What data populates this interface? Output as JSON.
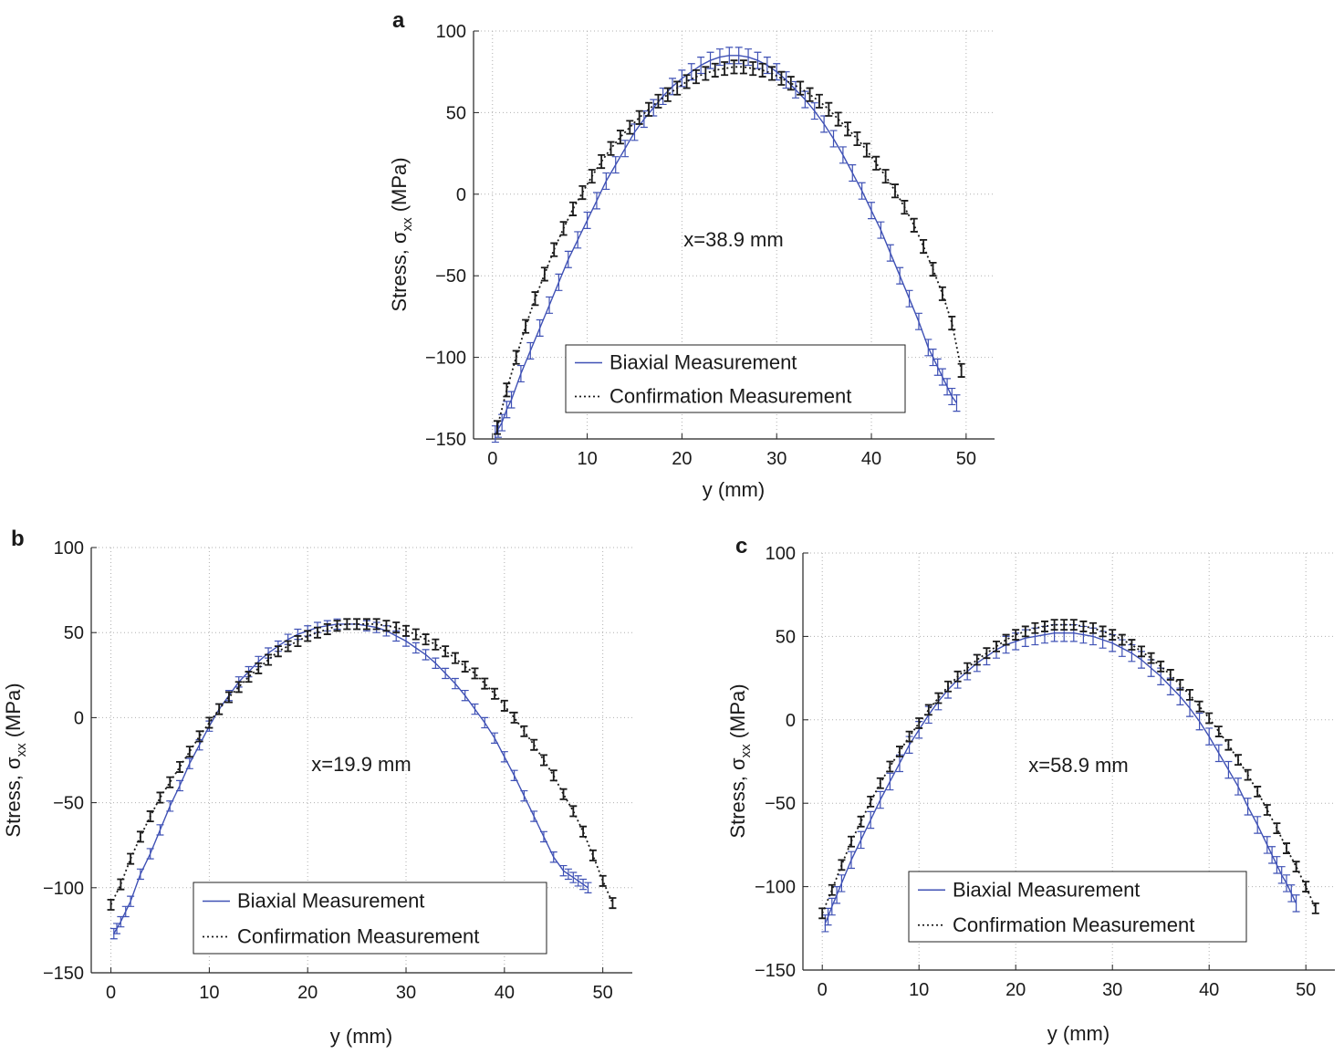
{
  "figure_labels": {
    "a": "a",
    "b": "b",
    "c": "c"
  },
  "colors": {
    "biaxial": "#3f51b5",
    "confirmation": "#1a1a1a",
    "grid": "#b0b0b0",
    "axis": "#222222"
  },
  "chart_data": [
    {
      "panel": "a",
      "type": "line",
      "annotation": "x=38.9 mm",
      "xlabel": "y (mm)",
      "ylabel_main": "Stress, σ",
      "ylabel_sub": "xx",
      "ylabel_unit": " (MPa)",
      "xlim": [
        -2,
        53
      ],
      "ylim": [
        -150,
        100
      ],
      "xticks": [
        0,
        10,
        20,
        30,
        40,
        50
      ],
      "yticks": [
        -150,
        -100,
        -50,
        0,
        50,
        100
      ],
      "xtick_labels": [
        "0",
        "10",
        "20",
        "30",
        "40",
        "50"
      ],
      "ytick_labels": [
        "−150",
        "−100",
        "−50",
        "0",
        "50",
        "100"
      ],
      "grid": true,
      "legend": {
        "placement": "lower-center",
        "entries": [
          "Biaxial Measurement",
          "Confirmation Measurement"
        ]
      },
      "series": [
        {
          "name": "Biaxial Measurement",
          "style": "solid",
          "x": [
            0.3,
            0.6,
            1,
            1.5,
            2,
            3,
            4,
            5,
            6,
            7,
            8,
            9,
            10,
            11,
            12,
            13,
            14,
            15,
            16,
            17,
            18,
            19,
            20,
            21,
            22,
            23,
            24,
            25,
            26,
            27,
            28,
            29,
            30,
            31,
            32,
            33,
            34,
            35,
            36,
            37,
            38,
            39,
            40,
            41,
            42,
            43,
            44,
            45,
            46,
            46.5,
            47,
            47.5,
            48,
            48.5,
            49
          ],
          "y": [
            -147,
            -144,
            -140,
            -132,
            -126,
            -110,
            -96,
            -82,
            -68,
            -54,
            -40,
            -28,
            -16,
            -4,
            8,
            18,
            28,
            38,
            46,
            53,
            60,
            66,
            71,
            75,
            79,
            82,
            84,
            85,
            85,
            84,
            82,
            79,
            75,
            70,
            64,
            58,
            51,
            43,
            34,
            24,
            13,
            2,
            -10,
            -22,
            -36,
            -50,
            -64,
            -78,
            -94,
            -100,
            -106,
            -112,
            -118,
            -124,
            -128
          ],
          "err": [
            5,
            5,
            5,
            5,
            5,
            5,
            5,
            5,
            5,
            5,
            5,
            5,
            5,
            5,
            5,
            5,
            5,
            5,
            5,
            5,
            5,
            5,
            5,
            5,
            5,
            5,
            5,
            5,
            5,
            5,
            5,
            5,
            5,
            5,
            5,
            5,
            5,
            5,
            5,
            5,
            5,
            5,
            5,
            5,
            5,
            5,
            5,
            5,
            5,
            5,
            5,
            5,
            5,
            5,
            5
          ]
        },
        {
          "name": "Confirmation Measurement",
          "style": "dotted",
          "x": [
            0.5,
            1.5,
            2.5,
            3.5,
            4.5,
            5.5,
            6.5,
            7.5,
            8.5,
            9.5,
            10.5,
            11.5,
            12.5,
            13.5,
            14.5,
            15.5,
            16.5,
            17.5,
            18.5,
            19.5,
            20.5,
            21.5,
            22.5,
            23.5,
            24.5,
            25.5,
            26.5,
            27.5,
            28.5,
            29.5,
            30.5,
            31.5,
            32.5,
            33.5,
            34.5,
            35.5,
            36.5,
            37.5,
            38.5,
            39.5,
            40.5,
            41.5,
            42.5,
            43.5,
            44.5,
            45.5,
            46.5,
            47.5,
            48.5,
            49.5
          ],
          "y": [
            -143,
            -120,
            -100,
            -81,
            -64,
            -49,
            -34,
            -21,
            -9,
            1,
            11,
            20,
            28,
            35,
            41,
            47,
            52,
            57,
            61,
            65,
            69,
            72,
            74,
            76,
            77,
            78,
            78,
            77,
            76,
            74,
            71,
            68,
            65,
            61,
            57,
            52,
            46,
            40,
            34,
            27,
            19,
            11,
            2,
            -8,
            -19,
            -32,
            -46,
            -61,
            -79,
            -108
          ],
          "err": [
            4,
            4,
            4,
            4,
            4,
            4,
            4,
            4,
            4,
            4,
            4,
            4,
            4,
            4,
            4,
            4,
            4,
            4,
            4,
            4,
            4,
            4,
            4,
            4,
            4,
            4,
            4,
            4,
            4,
            4,
            4,
            4,
            4,
            4,
            4,
            4,
            4,
            4,
            4,
            4,
            4,
            4,
            4,
            4,
            4,
            4,
            4,
            4,
            4,
            4
          ]
        }
      ]
    },
    {
      "panel": "b",
      "type": "line",
      "annotation": "x=19.9 mm",
      "xlabel": "y (mm)",
      "ylabel_main": "Stress, σ",
      "ylabel_sub": "xx",
      "ylabel_unit": " (MPa)",
      "xlim": [
        -2,
        53
      ],
      "ylim": [
        -150,
        100
      ],
      "xticks": [
        0,
        10,
        20,
        30,
        40,
        50
      ],
      "yticks": [
        -150,
        -100,
        -50,
        0,
        50,
        100
      ],
      "xtick_labels": [
        "0",
        "10",
        "20",
        "30",
        "40",
        "50"
      ],
      "ytick_labels": [
        "−150",
        "−100",
        "−50",
        "0",
        "50",
        "100"
      ],
      "grid": true,
      "legend": {
        "placement": "lower-center",
        "entries": [
          "Biaxial Measurement",
          "Confirmation Measurement"
        ]
      },
      "series": [
        {
          "name": "Biaxial Measurement",
          "style": "solid",
          "x": [
            0.3,
            0.6,
            1,
            1.5,
            2,
            3,
            4,
            5,
            6,
            7,
            8,
            9,
            10,
            11,
            12,
            13,
            14,
            15,
            16,
            17,
            18,
            19,
            20,
            21,
            22,
            23,
            24,
            25,
            26,
            27,
            28,
            29,
            30,
            31,
            32,
            33,
            34,
            35,
            36,
            37,
            38,
            39,
            40,
            41,
            42,
            43,
            44,
            45,
            46,
            46.5,
            47,
            47.5,
            48,
            48.5
          ],
          "y": [
            -127,
            -124,
            -120,
            -114,
            -108,
            -92,
            -80,
            -66,
            -52,
            -40,
            -27,
            -16,
            -5,
            5,
            13,
            21,
            27,
            33,
            38,
            42,
            46,
            49,
            51,
            53,
            54,
            55,
            55,
            55,
            54,
            53,
            51,
            48,
            45,
            41,
            37,
            32,
            26,
            20,
            13,
            5,
            -3,
            -12,
            -23,
            -34,
            -46,
            -58,
            -70,
            -82,
            -90,
            -92,
            -94,
            -96,
            -98,
            -100
          ],
          "err": [
            3,
            3,
            3,
            3,
            3,
            3,
            3,
            3,
            3,
            3,
            3,
            3,
            3,
            3,
            3,
            3,
            3,
            3,
            3,
            3,
            3,
            3,
            3,
            3,
            3,
            3,
            3,
            3,
            3,
            3,
            3,
            3,
            3,
            3,
            3,
            3,
            3,
            3,
            3,
            3,
            3,
            3,
            3,
            3,
            3,
            3,
            3,
            3,
            3,
            3,
            3,
            3,
            3,
            3
          ]
        },
        {
          "name": "Confirmation Measurement",
          "style": "dotted",
          "x": [
            0,
            1,
            2,
            3,
            4,
            5,
            6,
            7,
            8,
            9,
            10,
            11,
            12,
            13,
            14,
            15,
            16,
            17,
            18,
            19,
            20,
            21,
            22,
            23,
            24,
            25,
            26,
            27,
            28,
            29,
            30,
            31,
            32,
            33,
            34,
            35,
            36,
            37,
            38,
            39,
            40,
            41,
            42,
            43,
            44,
            45,
            46,
            47,
            48,
            49,
            50,
            51
          ],
          "y": [
            -110,
            -98,
            -83,
            -70,
            -58,
            -47,
            -38,
            -29,
            -20,
            -11,
            -3,
            5,
            12,
            18,
            24,
            29,
            34,
            39,
            42,
            45,
            48,
            50,
            52,
            54,
            55,
            55,
            55,
            55,
            54,
            53,
            51,
            49,
            46,
            43,
            39,
            35,
            30,
            26,
            20,
            14,
            7,
            0,
            -8,
            -16,
            -25,
            -34,
            -45,
            -55,
            -67,
            -81,
            -96,
            -109
          ],
          "err": [
            3,
            3,
            3,
            3,
            3,
            3,
            3,
            3,
            3,
            3,
            3,
            3,
            3,
            3,
            3,
            3,
            3,
            3,
            3,
            3,
            3,
            3,
            3,
            3,
            3,
            3,
            3,
            3,
            3,
            3,
            3,
            3,
            3,
            3,
            3,
            3,
            3,
            3,
            3,
            3,
            3,
            3,
            3,
            3,
            3,
            3,
            3,
            3,
            3,
            3,
            3,
            3
          ]
        }
      ]
    },
    {
      "panel": "c",
      "type": "line",
      "annotation": "x=58.9 mm",
      "xlabel": "y (mm)",
      "ylabel_main": "Stress, σ",
      "ylabel_sub": "xx",
      "ylabel_unit": " (MPa)",
      "xlim": [
        -2,
        53
      ],
      "ylim": [
        -150,
        100
      ],
      "xticks": [
        0,
        10,
        20,
        30,
        40,
        50
      ],
      "yticks": [
        -150,
        -100,
        -50,
        0,
        50,
        100
      ],
      "xtick_labels": [
        "0",
        "10",
        "20",
        "30",
        "40",
        "50"
      ],
      "ytick_labels": [
        "−150",
        "−100",
        "−50",
        "0",
        "50",
        "100"
      ],
      "grid": true,
      "legend": {
        "placement": "lower-center",
        "entries": [
          "Biaxial Measurement",
          "Confirmation Measurement"
        ]
      },
      "series": [
        {
          "name": "Biaxial Measurement",
          "style": "solid",
          "x": [
            0.3,
            0.6,
            1,
            1.5,
            2,
            3,
            4,
            5,
            6,
            7,
            8,
            9,
            10,
            11,
            12,
            13,
            14,
            15,
            16,
            17,
            18,
            19,
            20,
            21,
            22,
            23,
            24,
            25,
            26,
            27,
            28,
            29,
            30,
            31,
            32,
            33,
            34,
            35,
            36,
            37,
            38,
            39,
            40,
            41,
            42,
            43,
            44,
            45,
            46,
            46.5,
            47,
            47.5,
            48,
            48.5,
            49
          ],
          "y": [
            -122,
            -118,
            -112,
            -105,
            -98,
            -84,
            -72,
            -60,
            -48,
            -37,
            -26,
            -15,
            -6,
            3,
            11,
            18,
            24,
            29,
            34,
            38,
            42,
            45,
            47,
            49,
            50,
            51,
            52,
            52,
            52,
            51,
            50,
            48,
            46,
            43,
            40,
            36,
            31,
            26,
            20,
            14,
            7,
            -1,
            -10,
            -20,
            -30,
            -40,
            -52,
            -63,
            -75,
            -81,
            -87,
            -93,
            -98,
            -104,
            -110
          ],
          "err": [
            5,
            5,
            5,
            5,
            5,
            5,
            5,
            5,
            5,
            5,
            5,
            5,
            5,
            5,
            5,
            5,
            5,
            5,
            5,
            5,
            5,
            5,
            5,
            5,
            5,
            5,
            5,
            5,
            5,
            5,
            5,
            5,
            5,
            5,
            5,
            5,
            5,
            5,
            5,
            5,
            5,
            5,
            5,
            5,
            5,
            5,
            5,
            5,
            5,
            5,
            5,
            5,
            5,
            5,
            5
          ]
        },
        {
          "name": "Confirmation Measurement",
          "style": "dotted",
          "x": [
            0,
            1,
            2,
            3,
            4,
            5,
            6,
            7,
            8,
            9,
            10,
            11,
            12,
            13,
            14,
            15,
            16,
            17,
            18,
            19,
            20,
            21,
            22,
            23,
            24,
            25,
            26,
            27,
            28,
            29,
            30,
            31,
            32,
            33,
            34,
            35,
            36,
            37,
            38,
            39,
            40,
            41,
            42,
            43,
            44,
            45,
            46,
            47,
            48,
            49,
            50,
            51
          ],
          "y": [
            -116,
            -102,
            -87,
            -73,
            -61,
            -49,
            -38,
            -28,
            -19,
            -10,
            -2,
            6,
            13,
            20,
            26,
            31,
            36,
            40,
            44,
            48,
            51,
            53,
            55,
            56,
            57,
            57,
            57,
            56,
            55,
            53,
            51,
            48,
            45,
            41,
            37,
            32,
            27,
            21,
            15,
            8,
            1,
            -7,
            -15,
            -24,
            -33,
            -43,
            -54,
            -65,
            -77,
            -88,
            -100,
            -113
          ],
          "err": [
            3,
            3,
            3,
            3,
            3,
            3,
            3,
            3,
            3,
            3,
            3,
            3,
            3,
            3,
            3,
            3,
            3,
            3,
            3,
            3,
            3,
            3,
            3,
            3,
            3,
            3,
            3,
            3,
            3,
            3,
            3,
            3,
            3,
            3,
            3,
            3,
            3,
            3,
            3,
            3,
            3,
            3,
            3,
            3,
            3,
            3,
            3,
            3,
            3,
            3,
            3,
            3
          ]
        }
      ]
    }
  ]
}
